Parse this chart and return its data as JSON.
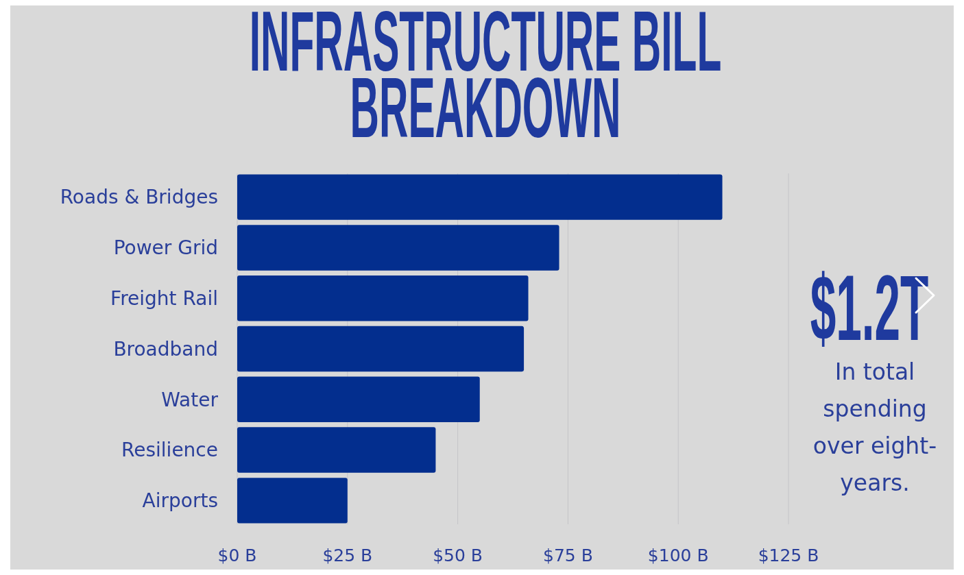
{
  "chart_data": {
    "type": "bar",
    "orientation": "horizontal",
    "title": "INFRASTRUCTURE BILL BREAKDOWN",
    "categories": [
      "Roads & Bridges",
      "Power Grid",
      "Freight Rail",
      "Broadband",
      "Water",
      "Resilience",
      "Airports"
    ],
    "values": [
      110,
      73,
      66,
      65,
      55,
      45,
      25
    ],
    "color": "#032e8e",
    "xlim": [
      0,
      125
    ],
    "xticks": [
      {
        "value": 0,
        "label": "$0 B"
      },
      {
        "value": 25,
        "label": "$25 B"
      },
      {
        "value": 50,
        "label": "$50 B"
      },
      {
        "value": 75,
        "label": "$75 B"
      },
      {
        "value": 100,
        "label": "$100 B"
      },
      {
        "value": 125,
        "label": "$125 B"
      }
    ],
    "grid": "x",
    "annotations": [
      "$1.2T",
      "In total spending over eight- years."
    ]
  }
}
